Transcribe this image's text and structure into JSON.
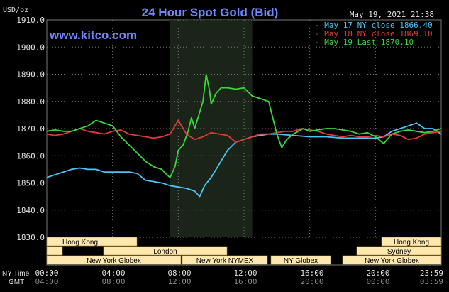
{
  "header": {
    "title": "24 Hour Spot Gold (Bid)",
    "unit": "USD/oz",
    "timestamp": "May 19, 2021 21:38",
    "watermark": "www.kitco.com"
  },
  "colors": {
    "background": "#000000",
    "plot": "#000000",
    "grid": "#777777",
    "highlight": "#1a2418",
    "title": "#6f86ff",
    "watermark": "#6f86ff",
    "axis_text": "#e0e0e0",
    "session_fill": "#ffe8b0",
    "session_text": "#000000"
  },
  "chart_data": {
    "type": "line",
    "title": "24 Hour Spot Gold (Bid)",
    "ylabel": "USD/oz",
    "xlabel": "",
    "ylim": [
      1830,
      1910
    ],
    "yticks": [
      "1910.0",
      "1900.0",
      "1890.0",
      "1880.0",
      "1870.0",
      "1860.0",
      "1850.0",
      "1840.0",
      "1830.0"
    ],
    "xlim": [
      0,
      24
    ],
    "grid": true,
    "legend_position": "top-right",
    "x_axis_rows": [
      {
        "label": "NY Time",
        "ticks": [
          "00:00",
          "04:00",
          "08:00",
          "12:00",
          "16:00",
          "20:00",
          "23:59"
        ],
        "color": "#e0e0e0"
      },
      {
        "label": "GMT",
        "ticks": [
          "04:00",
          "08:00",
          "12:00",
          "16:00",
          "20:00",
          "00:00",
          "03:59"
        ],
        "color": "#888888"
      }
    ],
    "highlight_window": [
      7.5,
      12.5
    ],
    "sessions": [
      {
        "label": "Hong Kong",
        "start": 2.2,
        "end": 13.0
      },
      {
        "label": "London",
        "start": 0,
        "end": 25.5
      },
      {
        "label": "New York Globex",
        "start": 0,
        "end": 20.5
      },
      {
        "label": "New York NYMEX",
        "start": 16.0,
        "end": 27.0
      },
      {
        "label": "NY Globex",
        "start": 0,
        "end": 9.0
      },
      {
        "label": "Hong Kong",
        "start": 2.2,
        "end": 13.0
      },
      {
        "label": "Sydney",
        "start": 0,
        "end": 11.0
      },
      {
        "label": "New York Globex",
        "start": 3.0,
        "end": 25.0
      }
    ],
    "series": [
      {
        "name": "May 17 NY close 1866.40",
        "color": "#4fc3f7",
        "x": [
          0,
          0.5,
          1,
          1.5,
          2,
          2.5,
          3,
          3.5,
          4,
          4.5,
          5,
          5.5,
          6,
          6.5,
          7,
          7.5,
          8,
          8.5,
          9,
          9.3,
          9.6,
          10,
          10.5,
          11,
          11.5,
          12,
          12.5,
          13,
          13.5,
          14,
          15,
          16,
          17,
          18,
          19,
          20,
          20.5,
          21,
          21.5,
          22,
          22.5,
          23,
          23.5,
          24
        ],
        "values": [
          1852,
          1853,
          1854,
          1855,
          1855.5,
          1855,
          1855,
          1854,
          1854,
          1854,
          1854,
          1853.5,
          1851,
          1850.5,
          1850,
          1849,
          1848.5,
          1848,
          1847,
          1845,
          1849,
          1852,
          1857,
          1862,
          1865,
          1866,
          1867,
          1867.5,
          1868,
          1868,
          1867.5,
          1867,
          1867,
          1866.5,
          1866.5,
          1866.5,
          1867,
          1869,
          1870,
          1871,
          1872,
          1870,
          1870,
          1868
        ]
      },
      {
        "name": "May 18 NY close 1869.10",
        "color": "#e53935",
        "x": [
          0,
          0.5,
          1,
          1.5,
          2,
          2.5,
          3,
          3.5,
          4,
          4.5,
          5,
          5.5,
          6,
          6.5,
          7,
          7.5,
          8,
          8.5,
          9,
          9.5,
          10,
          10.5,
          11,
          11.5,
          12,
          12.5,
          13,
          13.5,
          14,
          14.5,
          15,
          15.5,
          16,
          16.5,
          17,
          17.5,
          18,
          18.5,
          19,
          19.5,
          20,
          20.5,
          21,
          21.5,
          22,
          22.5,
          23,
          23.5,
          24
        ],
        "values": [
          1868,
          1867.5,
          1868,
          1869,
          1870,
          1869,
          1868.5,
          1868,
          1869,
          1869.5,
          1868,
          1867.5,
          1867,
          1866.5,
          1867,
          1868,
          1873,
          1868,
          1866,
          1867,
          1868.5,
          1868,
          1867.5,
          1865,
          1866,
          1867,
          1868,
          1868,
          1868.5,
          1869,
          1869,
          1870,
          1869.5,
          1869,
          1868,
          1867.5,
          1867,
          1867.5,
          1867,
          1867,
          1867.5,
          1867,
          1868,
          1867.5,
          1866,
          1866.5,
          1868,
          1868.5,
          1869
        ]
      },
      {
        "name": "May 19 Last 1870.10",
        "color": "#3bd63b",
        "x": [
          0,
          0.5,
          1,
          1.5,
          2,
          2.5,
          3,
          3.5,
          4,
          4.5,
          5,
          5.5,
          6,
          6.5,
          7,
          7.3,
          7.5,
          7.8,
          8,
          8.3,
          8.6,
          8.8,
          9,
          9.3,
          9.5,
          9.7,
          9.9,
          10,
          10.3,
          10.6,
          11,
          11.5,
          12,
          12.5,
          13,
          13.5,
          14,
          14.3,
          14.6,
          15,
          15.3,
          15.6,
          16,
          16.5,
          17,
          17.5,
          18,
          18.5,
          19,
          19.5,
          20,
          20.5,
          21,
          21.5,
          22,
          22.5,
          23,
          23.5,
          24
        ],
        "values": [
          1869,
          1869.5,
          1869,
          1869,
          1870,
          1871,
          1873,
          1872,
          1871,
          1867,
          1864,
          1861,
          1858,
          1856,
          1855,
          1853,
          1852,
          1856,
          1862,
          1864,
          1869,
          1874,
          1870,
          1876,
          1880,
          1890,
          1884,
          1879,
          1883,
          1885,
          1885,
          1884.5,
          1885,
          1882,
          1881,
          1880,
          1868,
          1863,
          1866,
          1868,
          1869,
          1870,
          1869,
          1869.5,
          1870,
          1870,
          1869.5,
          1869,
          1868,
          1868.5,
          1867,
          1864.5,
          1868,
          1869,
          1869.5,
          1869,
          1868.5,
          1869,
          1870
        ]
      }
    ]
  }
}
